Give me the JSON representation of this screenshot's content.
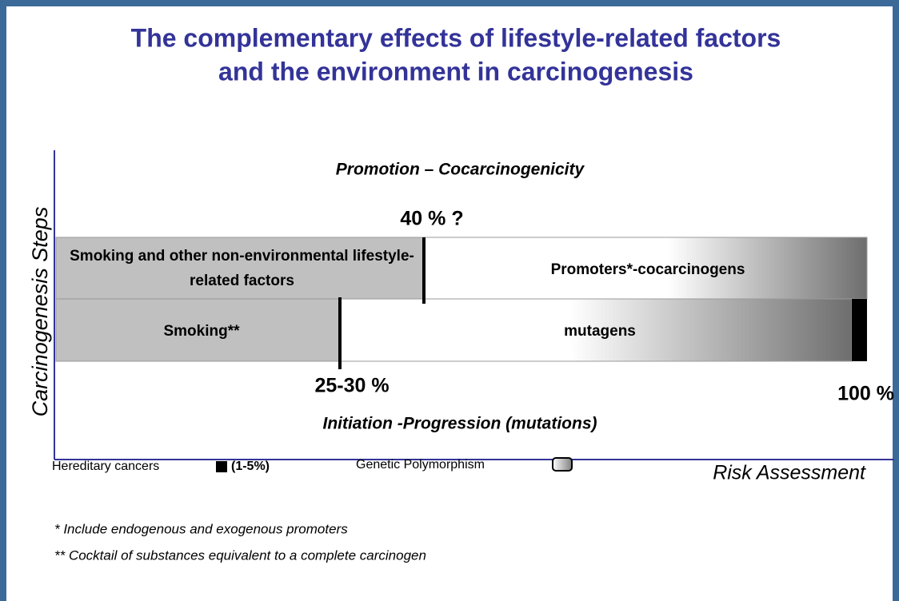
{
  "header": {
    "title_lines": [
      "The complementary effects of lifestyle-related factors",
      "and the environment in carcinogenesis"
    ]
  },
  "diagram": {
    "y_axis_label": "Carcinogenesis Steps",
    "x_axis_label": "Risk Assessment",
    "top_caption": "Promotion – Cocarcinogenicity",
    "bottom_caption": "Initiation -Progression (mutations)",
    "rows": [
      {
        "left": "Smoking and other non-environmental lifestyle-related factors",
        "right": "Promoters*-cocarcinogens",
        "marker": "40 % ?"
      },
      {
        "left": "Smoking**",
        "right": "mutagens",
        "marker": "25-30 %"
      }
    ],
    "end_label": "100 %",
    "legend": {
      "hereditary": "Hereditary cancers",
      "hereditary_range": "(1-5%)",
      "polymorphism": "Genetic Polymorphism"
    }
  },
  "footnotes": [
    "* Include endogenous and exogenous promoters",
    "** Cocktail of substances equivalent to a complete carcinogen"
  ]
}
